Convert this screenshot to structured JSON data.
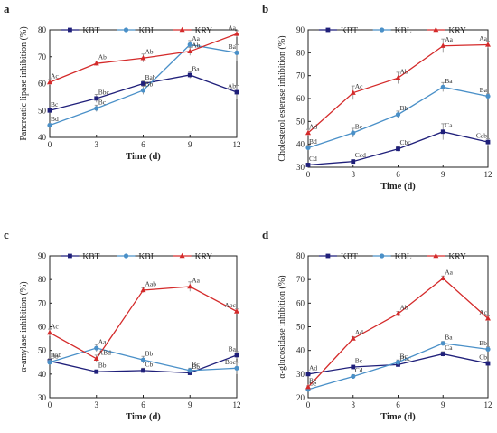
{
  "chart_data": [
    {
      "panel": "a",
      "type": "line",
      "xlabel": "Time (d)",
      "ylabel": "Pancreatic lipase inhibition (%)",
      "x": [
        0,
        3,
        6,
        9,
        12
      ],
      "xticks": [
        "0",
        "3",
        "6",
        "9",
        "12"
      ],
      "ylim": [
        40,
        80
      ],
      "yticks": [
        "40",
        "50",
        "60",
        "70",
        "80"
      ],
      "legend_position": "top",
      "series": [
        {
          "name": "KBT",
          "color": "#1f1f7a",
          "marker": "square",
          "values": [
            50.0,
            54.5,
            60.0,
            63.2,
            56.8
          ],
          "errors": [
            0.8,
            1.5,
            1.0,
            1.2,
            2.5
          ],
          "labels": [
            "Bc",
            "Bbc",
            "Bab",
            "Ba",
            "Ab"
          ]
        },
        {
          "name": "KBL",
          "color": "#4a90c8",
          "marker": "circle",
          "values": [
            44.5,
            50.8,
            57.5,
            74.5,
            71.5
          ],
          "errors": [
            0.6,
            1.2,
            1.5,
            1.5,
            3.0
          ],
          "labels": [
            "Bd",
            "Bc",
            "Bb",
            "Aa",
            "Ba"
          ]
        },
        {
          "name": "KRY",
          "color": "#d42a2a",
          "marker": "triangle",
          "values": [
            60.5,
            67.5,
            69.5,
            72.0,
            78.5
          ],
          "errors": [
            1.0,
            0.8,
            1.5,
            1.5,
            1.2
          ],
          "labels": [
            "Ac",
            "Ab",
            "Ab",
            "Ab",
            "Aa"
          ]
        }
      ]
    },
    {
      "panel": "b",
      "type": "line",
      "xlabel": "Time (d)",
      "ylabel": "Cholesterol esterase inhibition (%)",
      "x": [
        0,
        3,
        6,
        9,
        12
      ],
      "xticks": [
        "0",
        "3",
        "6",
        "9",
        "12"
      ],
      "ylim": [
        30,
        90
      ],
      "yticks": [
        "30",
        "40",
        "50",
        "60",
        "70",
        "80",
        "90"
      ],
      "legend_position": "top",
      "series": [
        {
          "name": "KBT",
          "color": "#1f1f7a",
          "marker": "square",
          "values": [
            31.0,
            32.5,
            38.0,
            45.5,
            41.0
          ],
          "errors": [
            0.5,
            0.8,
            1.0,
            3.5,
            1.5
          ],
          "labels": [
            "Cd",
            "Ccd",
            "Cbc",
            "Ca",
            "Cab"
          ]
        },
        {
          "name": "KBL",
          "color": "#4a90c8",
          "marker": "circle",
          "values": [
            38.5,
            45.0,
            53.0,
            65.0,
            61.0
          ],
          "errors": [
            1.0,
            2.0,
            1.5,
            2.0,
            1.0
          ],
          "labels": [
            "Bd",
            "Bc",
            "Bb",
            "Ba",
            "Ba"
          ]
        },
        {
          "name": "KRY",
          "color": "#d42a2a",
          "marker": "triangle",
          "values": [
            45.0,
            62.5,
            69.0,
            83.0,
            83.5
          ],
          "errors": [
            1.5,
            3.0,
            2.5,
            3.0,
            1.5
          ],
          "labels": [
            "Ad",
            "Ac",
            "Ab",
            "Aa",
            "Aa"
          ]
        }
      ]
    },
    {
      "panel": "c",
      "type": "line",
      "xlabel": "Time (d)",
      "ylabel": "α-amylase inhibition (%)",
      "x": [
        0,
        3,
        6,
        9,
        12
      ],
      "xticks": [
        "0",
        "3",
        "6",
        "9",
        "12"
      ],
      "ylim": [
        30,
        90
      ],
      "yticks": [
        "30",
        "40",
        "50",
        "60",
        "70",
        "80",
        "90"
      ],
      "legend_position": "top",
      "series": [
        {
          "name": "KBT",
          "color": "#1f1f7a",
          "marker": "square",
          "values": [
            45.5,
            41.0,
            41.5,
            40.5,
            48.0
          ],
          "errors": [
            1.0,
            0.8,
            1.0,
            1.0,
            1.5
          ],
          "labels": [
            "Bab",
            "Bb",
            "Cb",
            "Bb",
            "Ba"
          ]
        },
        {
          "name": "KBL",
          "color": "#4a90c8",
          "marker": "circle",
          "values": [
            45.0,
            51.0,
            46.0,
            41.5,
            42.5
          ],
          "errors": [
            1.0,
            1.5,
            1.5,
            1.0,
            2.5
          ],
          "labels": [
            "Bb",
            "Aa",
            "Bb",
            "Bc",
            "Bbc"
          ]
        },
        {
          "name": "KRY",
          "color": "#d42a2a",
          "marker": "triangle",
          "values": [
            57.5,
            46.5,
            75.5,
            77.0,
            66.5
          ],
          "errors": [
            1.5,
            1.5,
            1.0,
            2.0,
            1.0
          ],
          "labels": [
            "Ac",
            "ABd",
            "Aab",
            "Aa",
            "Abc"
          ]
        }
      ]
    },
    {
      "panel": "d",
      "type": "line",
      "xlabel": "Time (d)",
      "ylabel": "α-glucosidase inhibition (%)",
      "x": [
        0,
        3,
        6,
        9,
        12
      ],
      "xticks": [
        "0",
        "3",
        "6",
        "9",
        "12"
      ],
      "ylim": [
        20,
        80
      ],
      "yticks": [
        "20",
        "30",
        "40",
        "50",
        "60",
        "70",
        "80"
      ],
      "legend_position": "top",
      "series": [
        {
          "name": "KBT",
          "color": "#1f1f7a",
          "marker": "square",
          "values": [
            30.0,
            33.0,
            34.0,
            38.5,
            34.5
          ],
          "errors": [
            0.5,
            0.5,
            0.8,
            1.0,
            0.8
          ],
          "labels": [
            "Ad",
            "Bc",
            "Bbc",
            "Ca",
            "Cb"
          ]
        },
        {
          "name": "KBL",
          "color": "#4a90c8",
          "marker": "circle",
          "values": [
            23.5,
            29.0,
            35.0,
            43.0,
            40.5
          ],
          "errors": [
            0.5,
            0.8,
            1.0,
            0.8,
            1.0
          ],
          "labels": [
            "Be",
            "Cd",
            "Bc",
            "Ba",
            "Bb"
          ]
        },
        {
          "name": "KRY",
          "color": "#d42a2a",
          "marker": "triangle",
          "values": [
            24.5,
            45.0,
            55.5,
            70.5,
            53.5
          ],
          "errors": [
            0.5,
            0.8,
            1.0,
            1.0,
            1.0
          ],
          "labels": [
            "Be",
            "Ad",
            "Ab",
            "Aa",
            "Ac"
          ]
        }
      ]
    }
  ]
}
